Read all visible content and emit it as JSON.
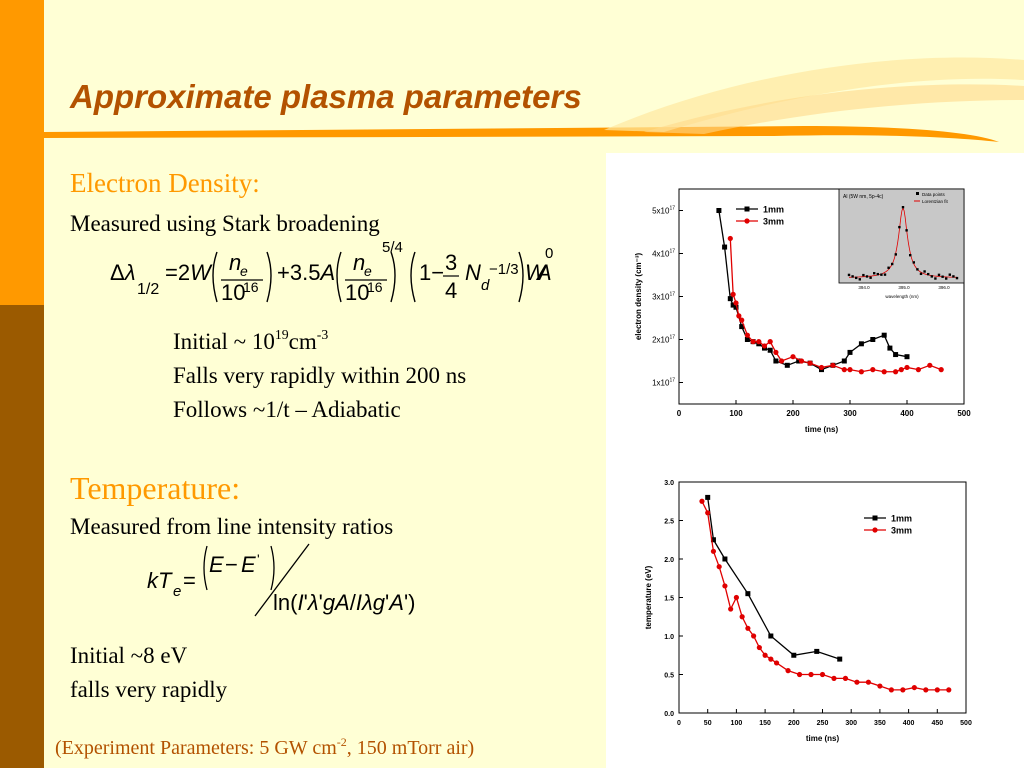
{
  "slide": {
    "title": "Approximate plasma parameters",
    "accent_color": "#ff9900",
    "title_color": "#b35200"
  },
  "electron_density": {
    "heading": "Electron Density:",
    "method": "Measured using Stark broadening",
    "initial_prefix": "Initial  ~ 10",
    "initial_exp": "19",
    "initial_unit": "cm",
    "initial_unit_exp": "-3",
    "line2": "Falls very rapidly within 200 ns",
    "line3": "Follows ~1/t – Adiabatic"
  },
  "temperature": {
    "heading": "Temperature:",
    "method": "Measured from line intensity ratios",
    "line1": "Initial ~8 eV",
    "line2": "falls very rapidly"
  },
  "footer": {
    "prefix": "(Experiment Parameters: 5 GW cm",
    "exp": "-2",
    "suffix": ", 150 mTorr air)"
  },
  "chart_data": [
    {
      "type": "line",
      "xlabel": "time (ns)",
      "ylabel": "electron density (cm⁻³)",
      "xlim": [
        0,
        500
      ],
      "ylim": [
        0.5,
        5.5
      ],
      "xticks": [
        "0",
        "100",
        "200",
        "300",
        "400",
        "500"
      ],
      "yticks": [
        {
          "base": "1x10",
          "exp": "17",
          "v": 1
        },
        {
          "base": "2x10",
          "exp": "17",
          "v": 2
        },
        {
          "base": "3x10",
          "exp": "17",
          "v": 3
        },
        {
          "base": "4x10",
          "exp": "17",
          "v": 4
        },
        {
          "base": "5x10",
          "exp": "17",
          "v": 5
        }
      ],
      "legend_position": "top",
      "series": [
        {
          "name": "1mm",
          "color": "#000000",
          "marker": "square",
          "x": [
            70,
            80,
            90,
            95,
            100,
            110,
            120,
            130,
            140,
            150,
            160,
            170,
            190,
            210,
            230,
            250,
            270,
            290,
            300,
            320,
            340,
            360,
            370,
            380,
            400
          ],
          "y": [
            5.0,
            4.15,
            2.95,
            2.8,
            2.75,
            2.3,
            2.0,
            1.95,
            1.9,
            1.8,
            1.75,
            1.5,
            1.4,
            1.5,
            1.45,
            1.3,
            1.4,
            1.5,
            1.7,
            1.9,
            2.0,
            2.1,
            1.8,
            1.65,
            1.6
          ]
        },
        {
          "name": "3mm",
          "color": "#e00000",
          "marker": "circle",
          "x": [
            90,
            95,
            100,
            105,
            110,
            120,
            130,
            140,
            150,
            160,
            170,
            180,
            200,
            215,
            230,
            250,
            270,
            290,
            300,
            320,
            340,
            360,
            380,
            390,
            400,
            420,
            440,
            460
          ],
          "y": [
            4.35,
            3.05,
            2.85,
            2.55,
            2.45,
            2.1,
            1.95,
            1.95,
            1.85,
            1.95,
            1.7,
            1.5,
            1.6,
            1.5,
            1.45,
            1.35,
            1.4,
            1.3,
            1.3,
            1.25,
            1.3,
            1.25,
            1.25,
            1.3,
            1.35,
            1.3,
            1.4,
            1.3
          ]
        }
      ],
      "inset": {
        "title": "Al (5W nm, 5p-4c)",
        "legend": [
          "Data points",
          "Lorentzian fit"
        ],
        "xlabel": "wavelength (nm)",
        "xticks": [
          "394.0",
          "395.0",
          "396.0"
        ]
      }
    },
    {
      "type": "line",
      "xlabel": "time (ns)",
      "ylabel": "temperature (eV)",
      "xlim": [
        0,
        500
      ],
      "ylim": [
        0,
        3.0
      ],
      "xticks": [
        "0",
        "50",
        "100",
        "150",
        "200",
        "250",
        "300",
        "350",
        "400",
        "450",
        "500"
      ],
      "yticks": [
        "0.0",
        "0.5",
        "1.0",
        "1.5",
        "2.0",
        "2.5",
        "3.0"
      ],
      "legend_position": "top-right",
      "series": [
        {
          "name": "1mm",
          "color": "#000000",
          "marker": "square",
          "x": [
            50,
            60,
            80,
            120,
            160,
            200,
            240,
            280
          ],
          "y": [
            2.8,
            2.25,
            2.0,
            1.55,
            1.0,
            0.75,
            0.8,
            0.7
          ]
        },
        {
          "name": "3mm",
          "color": "#e00000",
          "marker": "circle",
          "x": [
            40,
            50,
            60,
            70,
            80,
            90,
            100,
            110,
            120,
            130,
            140,
            150,
            160,
            170,
            190,
            210,
            230,
            250,
            270,
            290,
            310,
            330,
            350,
            370,
            390,
            410,
            430,
            450,
            470
          ],
          "y": [
            2.75,
            2.6,
            2.1,
            1.9,
            1.65,
            1.35,
            1.5,
            1.25,
            1.1,
            1.0,
            0.85,
            0.75,
            0.7,
            0.65,
            0.55,
            0.5,
            0.5,
            0.5,
            0.45,
            0.45,
            0.4,
            0.4,
            0.35,
            0.3,
            0.3,
            0.33,
            0.3,
            0.3,
            0.3
          ]
        }
      ]
    }
  ]
}
